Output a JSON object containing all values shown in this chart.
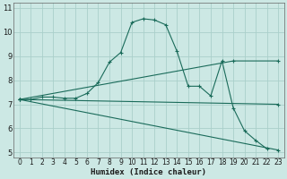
{
  "xlabel": "Humidex (Indice chaleur)",
  "background_color": "#cce8e4",
  "grid_color": "#aacfca",
  "line_color": "#1a6b5a",
  "xlim": [
    -0.5,
    23.5
  ],
  "ylim": [
    4.8,
    11.2
  ],
  "yticks": [
    5,
    6,
    7,
    8,
    9,
    10,
    11
  ],
  "xticks": [
    0,
    1,
    2,
    3,
    4,
    5,
    6,
    7,
    8,
    9,
    10,
    11,
    12,
    13,
    14,
    15,
    16,
    17,
    18,
    19,
    20,
    21,
    22,
    23
  ],
  "series": [
    {
      "x": [
        0,
        1,
        2,
        3,
        4,
        5,
        6,
        7,
        8,
        9,
        10,
        11,
        12,
        13,
        14,
        15,
        16,
        17,
        18,
        19,
        20,
        21,
        22,
        23
      ],
      "y": [
        7.2,
        7.2,
        7.3,
        7.3,
        7.25,
        7.25,
        7.45,
        7.9,
        8.75,
        9.15,
        10.4,
        10.55,
        10.5,
        10.3,
        9.2,
        7.75,
        7.75,
        7.35,
        8.8,
        6.85,
        5.9,
        5.5,
        5.15,
        null
      ]
    },
    {
      "x": [
        0,
        23
      ],
      "y": [
        7.2,
        7.0
      ]
    },
    {
      "x": [
        0,
        23
      ],
      "y": [
        7.2,
        5.1
      ]
    },
    {
      "x": [
        0,
        19,
        23
      ],
      "y": [
        7.2,
        8.8,
        8.8
      ]
    }
  ]
}
